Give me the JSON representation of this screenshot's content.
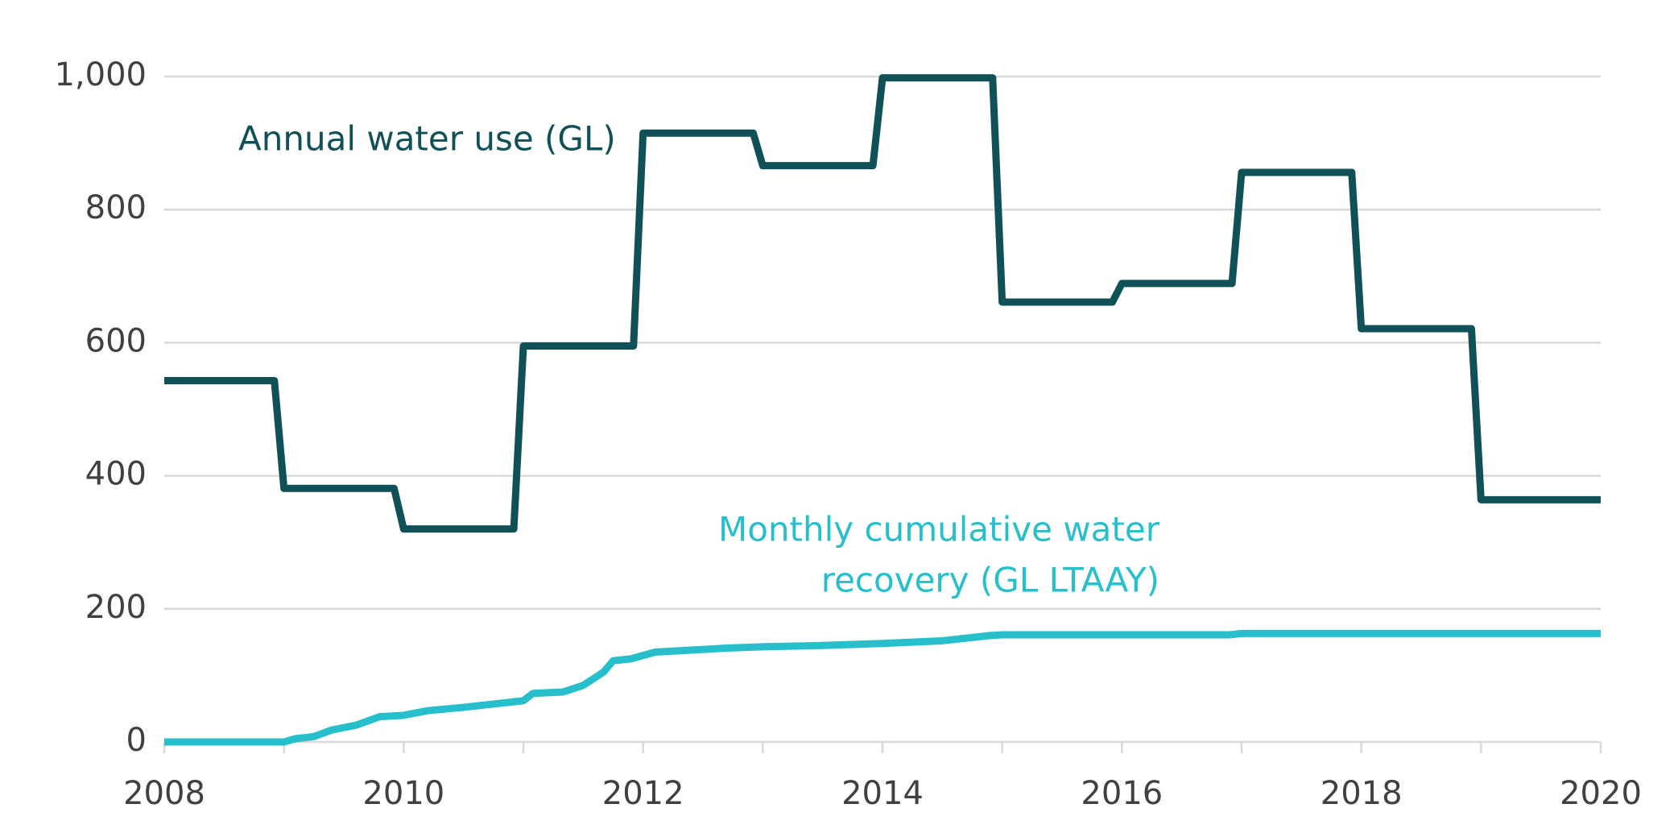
{
  "chart_data": {
    "type": "line",
    "series": [
      {
        "name": "Annual water use (GL)",
        "color": "#0f5157",
        "x": [
          2008,
          2008.92,
          2009,
          2009.92,
          2010,
          2010.92,
          2011,
          2011.92,
          2012,
          2012.92,
          2013,
          2013.92,
          2014,
          2014.92,
          2015,
          2015.92,
          2016,
          2016.92,
          2017,
          2017.92,
          2018,
          2018.92,
          2019,
          2020
        ],
        "values": [
          543,
          543,
          381,
          381,
          320,
          320,
          595,
          595,
          915,
          915,
          866,
          866,
          998,
          998,
          661,
          661,
          689,
          689,
          856,
          856,
          621,
          621,
          364,
          364
        ]
      },
      {
        "name": [
          "Monthly cumulative water",
          "recovery (GL LTAAY)"
        ],
        "color": "#26bfcb",
        "x": [
          2008,
          2009,
          2009.1,
          2009.25,
          2009.4,
          2009.6,
          2009.8,
          2010,
          2010.2,
          2010.5,
          2010.75,
          2011,
          2011.08,
          2011.33,
          2011.5,
          2011.67,
          2011.75,
          2011.9,
          2012.1,
          2012.4,
          2012.7,
          2013,
          2013.5,
          2014,
          2014.5,
          2014.9,
          2015,
          2016.9,
          2017,
          2020
        ],
        "values": [
          0,
          0,
          5,
          8,
          18,
          25,
          38,
          40,
          47,
          52,
          57,
          62,
          73,
          75,
          85,
          105,
          122,
          125,
          135,
          138,
          141,
          143,
          145,
          148,
          152,
          160,
          161,
          161,
          163,
          163
        ]
      }
    ],
    "xlim": [
      2008,
      2020
    ],
    "xticks": [
      2008,
      2010,
      2012,
      2014,
      2016,
      2018,
      2020
    ],
    "ylim": [
      0,
      1000
    ],
    "yticks": [
      0,
      200,
      400,
      600,
      800,
      {
        "value": 1000,
        "label": "1,000"
      }
    ],
    "grid": true
  }
}
